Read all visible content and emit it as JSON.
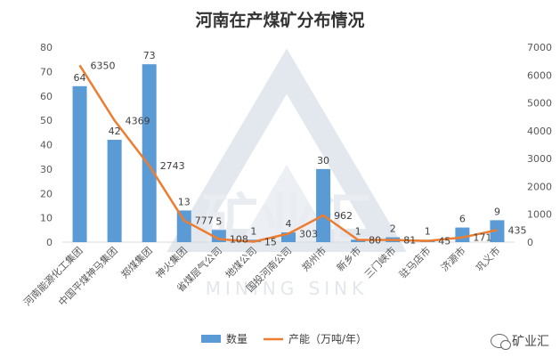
{
  "chart_data": {
    "type": "bar",
    "title": "河南在产煤矿分布情况",
    "categories": [
      "河南能源化工集团",
      "中国平煤神马集团",
      "郑煤集团",
      "神火集团",
      "省煤层气公司",
      "地煤公司",
      "国投河南公司",
      "郑州市",
      "新乡市",
      "三门峡市",
      "驻马店市",
      "济源市",
      "巩义市"
    ],
    "series": [
      {
        "name": "数量",
        "type": "bar",
        "axis": "left",
        "color": "#5b9bd5",
        "values": [
          64,
          42,
          73,
          13,
          5,
          1,
          4,
          30,
          1,
          2,
          1,
          6,
          9
        ]
      },
      {
        "name": "产能（万吨/年）",
        "type": "line",
        "axis": "right",
        "color": "#ed7d31",
        "values": [
          6350,
          4369,
          2743,
          777,
          108,
          15,
          303,
          962,
          80,
          81,
          45,
          171,
          435
        ]
      }
    ],
    "y_left": {
      "min": 0,
      "max": 80,
      "ticks": [
        0,
        10,
        20,
        30,
        40,
        50,
        60,
        70,
        80
      ]
    },
    "y_right": {
      "min": 0,
      "max": 7000,
      "ticks": [
        0,
        1000,
        2000,
        3000,
        4000,
        5000,
        6000,
        7000
      ]
    },
    "legend": "bottom",
    "grid": false
  },
  "watermark": {
    "text": "矿业汇",
    "subtext": "MINING SINK"
  }
}
